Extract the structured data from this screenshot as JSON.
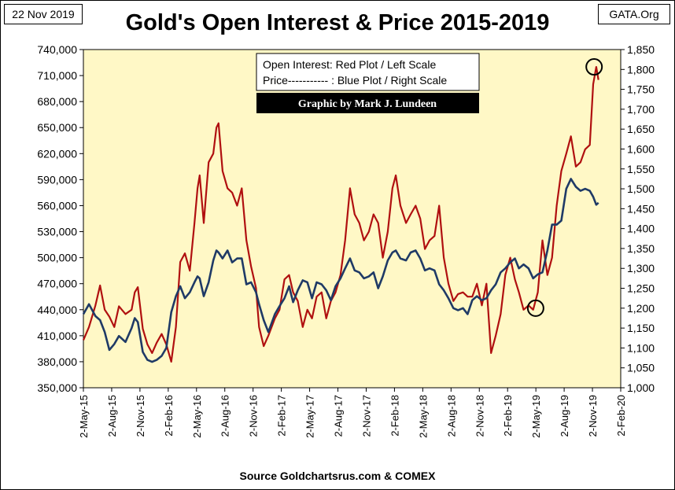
{
  "header": {
    "date": "22 Nov 2019",
    "site": "GATA.Org",
    "title": "Gold's Open Interest & Price 2015-2019"
  },
  "footer": {
    "source": "Source Goldchartsrus.com & COMEX"
  },
  "colors": {
    "plot_background": "#FFF8C6",
    "open_interest": "#B01010",
    "price": "#1F3A66",
    "credit_box": "#000000",
    "credit_text": "#FFFFFF"
  },
  "chart_data": {
    "type": "line",
    "title": "Gold's Open Interest & Price 2015-2019",
    "legend": {
      "line1": "Open Interest:  Red Plot / Left Scale",
      "line2": "Price----------- : Blue Plot / Right Scale",
      "credit": "Graphic by Mark J. Lundeen",
      "placement": "top-center"
    },
    "x_ticks": [
      "2-May-15",
      "2-Aug-15",
      "2-Nov-15",
      "2-Feb-16",
      "2-May-16",
      "2-Aug-16",
      "2-Nov-16",
      "2-Feb-17",
      "2-May-17",
      "2-Aug-17",
      "2-Nov-17",
      "2-Feb-18",
      "2-May-18",
      "2-Aug-18",
      "2-Nov-18",
      "2-Feb-19",
      "2-May-19",
      "2-Aug-19",
      "2-Nov-19",
      "2-Feb-20"
    ],
    "xlim": [
      "2015-05-02",
      "2020-02-02"
    ],
    "y_left": {
      "label": "",
      "lim": [
        350000,
        740000
      ],
      "ticks": [
        "350,000",
        "380,000",
        "410,000",
        "440,000",
        "470,000",
        "500,000",
        "530,000",
        "560,000",
        "590,000",
        "620,000",
        "650,000",
        "680,000",
        "710,000",
        "740,000"
      ]
    },
    "y_right": {
      "label": "",
      "lim": [
        1000,
        1850
      ],
      "ticks": [
        "1,000",
        "1,050",
        "1,100",
        "1,150",
        "1,200",
        "1,250",
        "1,300",
        "1,350",
        "1,400",
        "1,450",
        "1,500",
        "1,550",
        "1,600",
        "1,650",
        "1,700",
        "1,750",
        "1,800",
        "1,850"
      ]
    },
    "grid": false,
    "series": [
      {
        "name": "Open Interest",
        "axis": "left",
        "x": [
          "2015-05-02",
          "2015-05-20",
          "2015-06-10",
          "2015-06-25",
          "2015-07-10",
          "2015-07-25",
          "2015-08-10",
          "2015-08-25",
          "2015-09-15",
          "2015-10-05",
          "2015-10-15",
          "2015-10-25",
          "2015-11-10",
          "2015-11-25",
          "2015-12-10",
          "2015-12-25",
          "2016-01-10",
          "2016-01-25",
          "2016-02-10",
          "2016-02-25",
          "2016-03-10",
          "2016-03-25",
          "2016-04-10",
          "2016-04-25",
          "2016-05-05",
          "2016-05-12",
          "2016-05-25",
          "2016-06-10",
          "2016-06-25",
          "2016-07-05",
          "2016-07-12",
          "2016-07-25",
          "2016-08-10",
          "2016-08-25",
          "2016-09-10",
          "2016-09-25",
          "2016-10-10",
          "2016-10-25",
          "2016-11-10",
          "2016-11-20",
          "2016-12-05",
          "2016-12-20",
          "2017-01-10",
          "2017-01-25",
          "2017-02-10",
          "2017-02-25",
          "2017-03-10",
          "2017-03-25",
          "2017-04-10",
          "2017-04-25",
          "2017-05-10",
          "2017-05-25",
          "2017-06-10",
          "2017-06-25",
          "2017-07-10",
          "2017-07-25",
          "2017-08-10",
          "2017-08-25",
          "2017-09-10",
          "2017-09-25",
          "2017-10-10",
          "2017-10-25",
          "2017-11-10",
          "2017-11-25",
          "2017-12-10",
          "2017-12-25",
          "2018-01-10",
          "2018-01-25",
          "2018-02-05",
          "2018-02-20",
          "2018-03-10",
          "2018-03-25",
          "2018-04-10",
          "2018-04-25",
          "2018-05-10",
          "2018-05-25",
          "2018-06-10",
          "2018-06-25",
          "2018-07-10",
          "2018-07-25",
          "2018-08-10",
          "2018-08-25",
          "2018-09-10",
          "2018-09-25",
          "2018-10-10",
          "2018-10-25",
          "2018-11-10",
          "2018-11-25",
          "2018-12-10",
          "2018-12-25",
          "2019-01-10",
          "2019-01-25",
          "2019-02-10",
          "2019-02-25",
          "2019-03-10",
          "2019-03-25",
          "2019-04-10",
          "2019-04-25",
          "2019-05-10",
          "2019-05-25",
          "2019-06-10",
          "2019-06-25",
          "2019-07-10",
          "2019-07-25",
          "2019-08-10",
          "2019-08-25",
          "2019-09-10",
          "2019-09-25",
          "2019-10-10",
          "2019-10-25",
          "2019-11-05",
          "2019-11-15",
          "2019-11-22"
        ],
        "values": [
          405000,
          420000,
          445000,
          468000,
          440000,
          432000,
          420000,
          444000,
          435000,
          440000,
          460000,
          466000,
          418000,
          400000,
          390000,
          402000,
          412000,
          400000,
          380000,
          420000,
          495000,
          505000,
          485000,
          540000,
          580000,
          595000,
          540000,
          610000,
          620000,
          650000,
          655000,
          600000,
          580000,
          575000,
          560000,
          580000,
          520000,
          490000,
          465000,
          420000,
          398000,
          410000,
          430000,
          440000,
          475000,
          480000,
          460000,
          450000,
          420000,
          440000,
          430000,
          455000,
          460000,
          430000,
          450000,
          460000,
          480000,
          520000,
          580000,
          550000,
          540000,
          520000,
          530000,
          550000,
          540000,
          500000,
          530000,
          580000,
          595000,
          560000,
          540000,
          550000,
          560000,
          545000,
          510000,
          520000,
          525000,
          560000,
          500000,
          470000,
          450000,
          458000,
          460000,
          455000,
          455000,
          470000,
          445000,
          470000,
          390000,
          410000,
          435000,
          480000,
          500000,
          475000,
          460000,
          440000,
          445000,
          440000,
          460000,
          520000,
          480000,
          500000,
          560000,
          600000,
          620000,
          640000,
          605000,
          610000,
          625000,
          630000,
          700000,
          720000,
          705000
        ]
      },
      {
        "name": "Price",
        "axis": "right",
        "x": [
          "2015-05-02",
          "2015-05-20",
          "2015-06-10",
          "2015-06-25",
          "2015-07-10",
          "2015-07-25",
          "2015-08-10",
          "2015-08-25",
          "2015-09-15",
          "2015-10-05",
          "2015-10-15",
          "2015-10-25",
          "2015-11-10",
          "2015-11-25",
          "2015-12-10",
          "2015-12-25",
          "2016-01-10",
          "2016-01-25",
          "2016-02-10",
          "2016-02-25",
          "2016-03-10",
          "2016-03-25",
          "2016-04-10",
          "2016-04-25",
          "2016-05-05",
          "2016-05-12",
          "2016-05-25",
          "2016-06-10",
          "2016-06-25",
          "2016-07-05",
          "2016-07-12",
          "2016-07-25",
          "2016-08-10",
          "2016-08-25",
          "2016-09-10",
          "2016-09-25",
          "2016-10-10",
          "2016-10-25",
          "2016-11-10",
          "2016-11-20",
          "2016-12-05",
          "2016-12-20",
          "2017-01-10",
          "2017-01-25",
          "2017-02-10",
          "2017-02-25",
          "2017-03-10",
          "2017-03-25",
          "2017-04-10",
          "2017-04-25",
          "2017-05-10",
          "2017-05-25",
          "2017-06-10",
          "2017-06-25",
          "2017-07-10",
          "2017-07-25",
          "2017-08-10",
          "2017-08-25",
          "2017-09-10",
          "2017-09-25",
          "2017-10-10",
          "2017-10-25",
          "2017-11-10",
          "2017-11-25",
          "2017-12-10",
          "2017-12-25",
          "2018-01-10",
          "2018-01-25",
          "2018-02-05",
          "2018-02-20",
          "2018-03-10",
          "2018-03-25",
          "2018-04-10",
          "2018-04-25",
          "2018-05-10",
          "2018-05-25",
          "2018-06-10",
          "2018-06-25",
          "2018-07-10",
          "2018-07-25",
          "2018-08-10",
          "2018-08-25",
          "2018-09-10",
          "2018-09-25",
          "2018-10-10",
          "2018-10-25",
          "2018-11-10",
          "2018-11-25",
          "2018-12-10",
          "2018-12-25",
          "2019-01-10",
          "2019-01-25",
          "2019-02-10",
          "2019-02-25",
          "2019-03-10",
          "2019-03-25",
          "2019-04-10",
          "2019-04-25",
          "2019-05-10",
          "2019-05-25",
          "2019-06-10",
          "2019-06-25",
          "2019-07-10",
          "2019-07-25",
          "2019-08-10",
          "2019-08-25",
          "2019-09-10",
          "2019-09-25",
          "2019-10-10",
          "2019-10-25",
          "2019-11-05",
          "2019-11-15",
          "2019-11-22"
        ],
        "values": [
          1185,
          1210,
          1180,
          1170,
          1140,
          1095,
          1110,
          1130,
          1115,
          1150,
          1175,
          1165,
          1090,
          1070,
          1065,
          1070,
          1080,
          1100,
          1190,
          1230,
          1255,
          1225,
          1240,
          1265,
          1280,
          1275,
          1230,
          1265,
          1320,
          1345,
          1340,
          1325,
          1345,
          1315,
          1325,
          1325,
          1260,
          1265,
          1240,
          1210,
          1170,
          1140,
          1185,
          1205,
          1225,
          1255,
          1215,
          1245,
          1270,
          1265,
          1225,
          1265,
          1260,
          1245,
          1220,
          1255,
          1275,
          1300,
          1325,
          1295,
          1290,
          1275,
          1280,
          1290,
          1250,
          1280,
          1320,
          1340,
          1345,
          1325,
          1320,
          1340,
          1345,
          1325,
          1295,
          1300,
          1295,
          1260,
          1245,
          1225,
          1200,
          1195,
          1200,
          1185,
          1220,
          1230,
          1220,
          1225,
          1245,
          1260,
          1290,
          1300,
          1315,
          1325,
          1300,
          1310,
          1300,
          1275,
          1285,
          1290,
          1345,
          1410,
          1410,
          1420,
          1500,
          1525,
          1505,
          1495,
          1500,
          1495,
          1480,
          1460,
          1465
        ]
      }
    ],
    "annotations": [
      {
        "shape": "circle",
        "series": "Price",
        "x": "2019-05-03",
        "y": 1200
      },
      {
        "shape": "circle",
        "series": "Open Interest",
        "x": "2019-11-08",
        "y": 720000
      }
    ]
  }
}
